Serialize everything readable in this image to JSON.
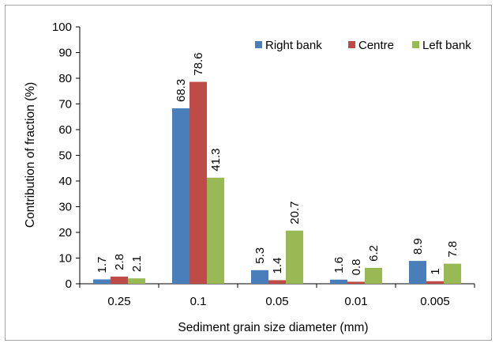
{
  "chart_data": {
    "type": "bar",
    "categories": [
      "0.25",
      "0.1",
      "0.05",
      "0.01",
      "0.005"
    ],
    "series": [
      {
        "name": "Right bank",
        "color": "#4a7ebb",
        "values": [
          1.7,
          68.3,
          5.3,
          1.6,
          8.9
        ],
        "labels": [
          "1.7",
          "68.3",
          "5.3",
          "1.6",
          "8.9"
        ]
      },
      {
        "name": "Centre",
        "color": "#be4b48",
        "values": [
          2.8,
          78.6,
          1.4,
          0.8,
          1
        ],
        "labels": [
          "2.8",
          "78.6",
          "1.4",
          "0.8",
          "1"
        ]
      },
      {
        "name": "Left bank",
        "color": "#98b954",
        "values": [
          2.1,
          41.3,
          20.7,
          6.2,
          7.8
        ],
        "labels": [
          "2.1",
          "41.3",
          "20.7",
          "6.2",
          "7.8"
        ]
      }
    ],
    "xlabel": "Sediment grain size diameter (mm)",
    "ylabel": "Contribution of fraction (%)",
    "ylim": [
      0,
      100
    ],
    "yticks": [
      "0",
      "10",
      "20",
      "30",
      "40",
      "50",
      "60",
      "70",
      "80",
      "90",
      "100"
    ],
    "grid": false,
    "legend_position": "top-right"
  }
}
